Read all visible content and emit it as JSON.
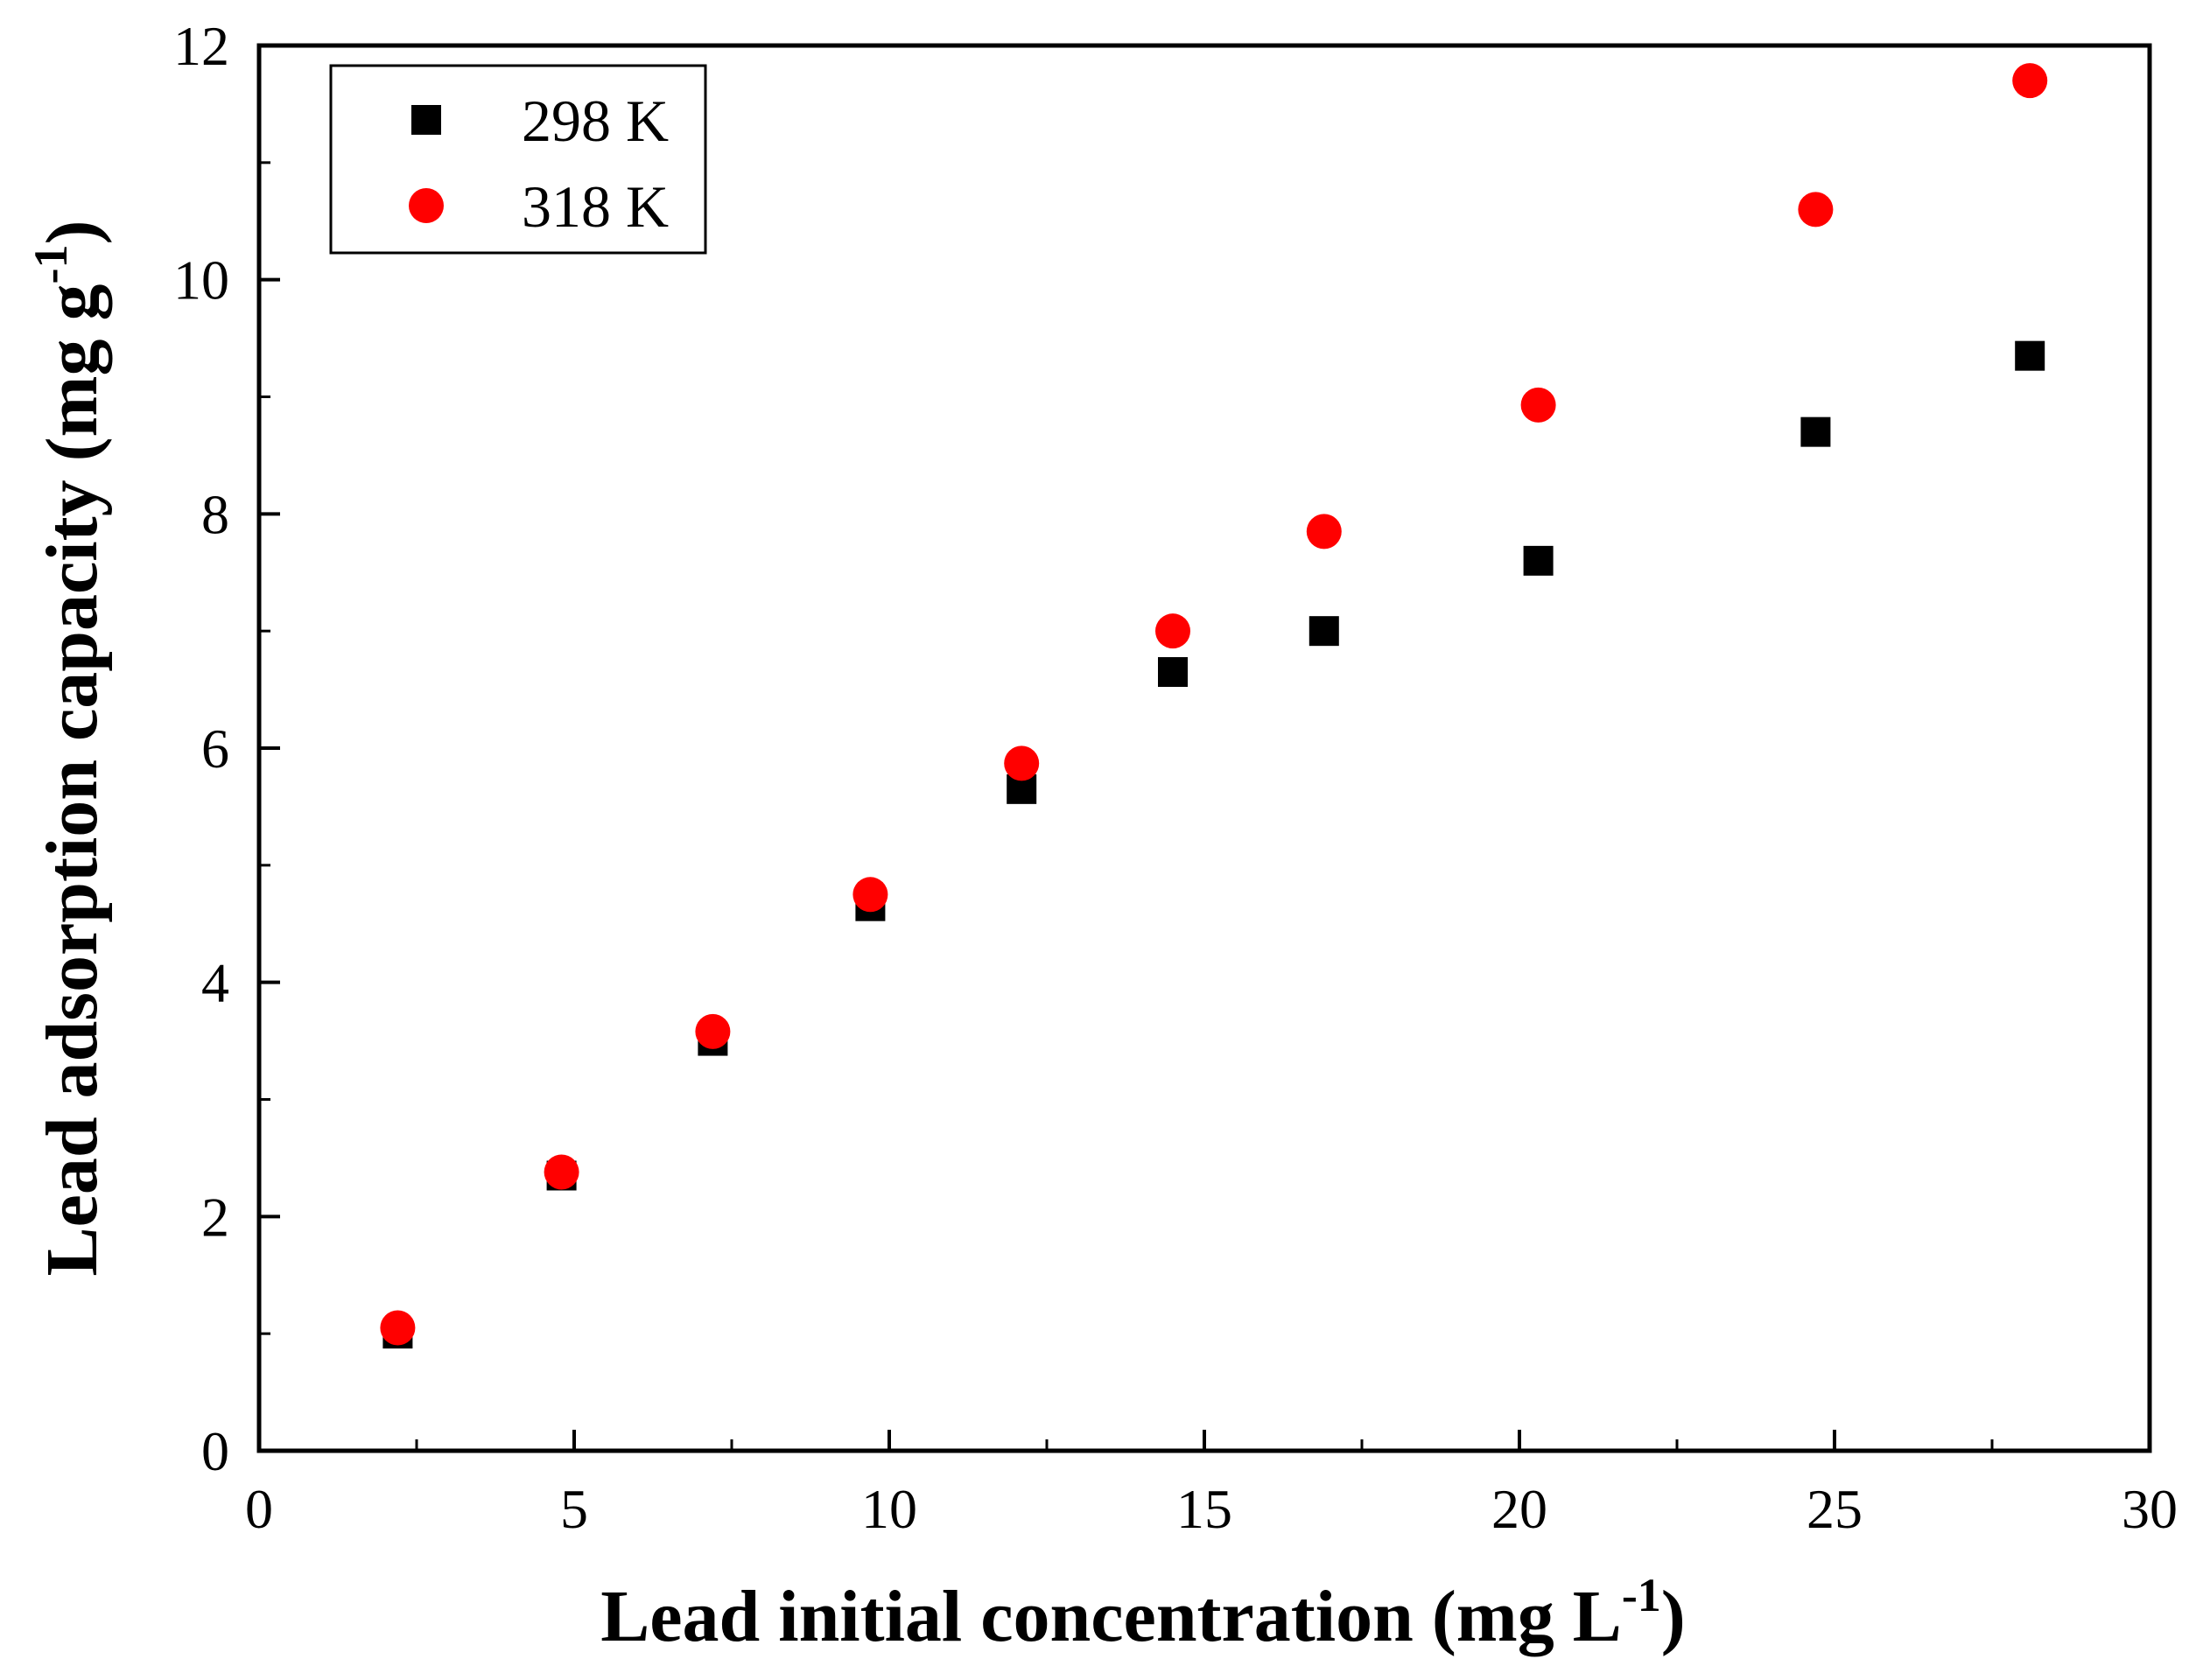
{
  "chart_data": {
    "type": "scatter",
    "title": "",
    "xlabel": {
      "main": "Lead initial concentration (mg L",
      "sup": "-1",
      "close": ")"
    },
    "ylabel": {
      "main": "Lead adsorption capacity (mg g",
      "sup": "-1",
      "close": ")"
    },
    "xlim": [
      0,
      30
    ],
    "ylim": [
      0,
      12
    ],
    "xticks": [
      0,
      5,
      10,
      15,
      20,
      25,
      30
    ],
    "yticks": [
      0,
      2,
      4,
      6,
      8,
      10,
      12
    ],
    "xminor": [
      2.5,
      7.5,
      12.5,
      17.5,
      22.5,
      27.5
    ],
    "yminor": [
      1,
      3,
      5,
      7,
      9,
      11
    ],
    "grid": false,
    "legend_position": "top-left",
    "series": [
      {
        "name": "298 K",
        "marker": "square",
        "color": "#000000",
        "x": [
          2.2,
          4.8,
          7.2,
          9.7,
          12.1,
          14.5,
          16.9,
          20.3,
          24.7,
          28.1
        ],
        "y": [
          1.0,
          2.35,
          3.5,
          4.65,
          5.65,
          6.65,
          7.0,
          7.6,
          8.7,
          9.35
        ]
      },
      {
        "name": "318 K",
        "marker": "circle",
        "color": "#ff0000",
        "x": [
          2.2,
          4.8,
          7.2,
          9.7,
          12.1,
          14.5,
          16.9,
          20.3,
          24.7,
          28.1
        ],
        "y": [
          1.05,
          2.38,
          3.58,
          4.75,
          5.87,
          7.0,
          7.85,
          8.93,
          10.6,
          11.7
        ]
      }
    ]
  }
}
